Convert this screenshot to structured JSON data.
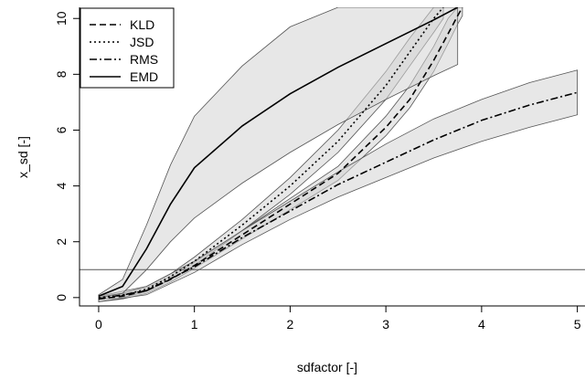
{
  "chart_data": {
    "type": "line",
    "xlabel": "sdfactor [-]",
    "ylabel": "x_sd [-]",
    "xlim": [
      -0.2,
      5.08
    ],
    "ylim": [
      -0.3,
      10.4
    ],
    "xticks": [
      "0",
      "1",
      "2",
      "3",
      "4",
      "5"
    ],
    "yticks": [
      "0",
      "2",
      "4",
      "6",
      "8",
      "10"
    ],
    "reference_line_y": 1,
    "legend_position": "top-left",
    "colors": {
      "band_fill": "#d3d3d3",
      "band_stroke": "#555555",
      "line": "#000000"
    },
    "series": [
      {
        "name": "KLD",
        "linestyle": "dashed",
        "x": [
          0,
          0.25,
          0.5,
          0.75,
          1,
          1.5,
          2,
          2.5,
          3,
          3.25,
          3.5,
          3.65,
          3.75,
          3.8
        ],
        "values": [
          -0.05,
          0.05,
          0.25,
          0.65,
          1.15,
          2.25,
          3.35,
          4.45,
          6.1,
          7.1,
          8.5,
          9.45,
          10.1,
          10.4
        ],
        "band_lower": [
          -0.15,
          -0.05,
          0.15,
          0.55,
          1.05,
          2.1,
          3.15,
          4.2,
          5.8,
          6.8,
          8.1,
          9.1,
          9.8,
          10.1
        ],
        "band_upper": [
          0.05,
          0.15,
          0.35,
          0.75,
          1.25,
          2.4,
          3.55,
          4.7,
          6.5,
          7.6,
          9.0,
          10.0,
          10.4,
          10.4
        ]
      },
      {
        "name": "JSD",
        "linestyle": "dotted",
        "x": [
          0,
          0.25,
          0.5,
          0.75,
          1,
          1.5,
          2,
          2.5,
          3,
          3.25,
          3.5,
          3.6
        ],
        "values": [
          0,
          0.08,
          0.3,
          0.75,
          1.3,
          2.6,
          4.0,
          5.6,
          7.6,
          8.8,
          10.0,
          10.4
        ],
        "band_lower": [
          -0.05,
          0.0,
          0.22,
          0.65,
          1.15,
          2.4,
          3.7,
          5.2,
          7.1,
          8.3,
          9.5,
          10.0
        ],
        "band_upper": [
          0.05,
          0.15,
          0.4,
          0.85,
          1.45,
          2.8,
          4.3,
          6.0,
          8.1,
          9.3,
          10.4,
          10.4
        ]
      },
      {
        "name": "RMS",
        "linestyle": "dashdot",
        "x": [
          0,
          0.5,
          1,
          1.5,
          2,
          2.5,
          3,
          3.5,
          4,
          4.5,
          5
        ],
        "values": [
          -0.05,
          0.25,
          1.1,
          2.15,
          3.1,
          4.05,
          4.85,
          5.65,
          6.35,
          6.9,
          7.35
        ],
        "band_lower": [
          -0.15,
          0.1,
          0.9,
          1.9,
          2.8,
          3.6,
          4.3,
          5.0,
          5.6,
          6.1,
          6.55
        ],
        "band_upper": [
          0.05,
          0.4,
          1.3,
          2.4,
          3.45,
          4.5,
          5.5,
          6.4,
          7.1,
          7.7,
          8.15
        ]
      },
      {
        "name": "EMD",
        "linestyle": "solid",
        "x": [
          0,
          0.25,
          0.5,
          0.75,
          1,
          1.5,
          2,
          2.5,
          3,
          3.5,
          3.75
        ],
        "values": [
          0.05,
          0.4,
          1.75,
          3.35,
          4.65,
          6.15,
          7.3,
          8.25,
          9.1,
          9.95,
          10.4
        ],
        "band_lower": [
          0.0,
          0.15,
          1.0,
          2.0,
          2.85,
          4.1,
          5.2,
          6.2,
          7.1,
          7.95,
          8.35
        ],
        "band_upper": [
          0.1,
          0.65,
          2.6,
          4.75,
          6.5,
          8.3,
          9.7,
          10.4,
          10.4,
          10.4,
          10.4
        ]
      }
    ]
  }
}
